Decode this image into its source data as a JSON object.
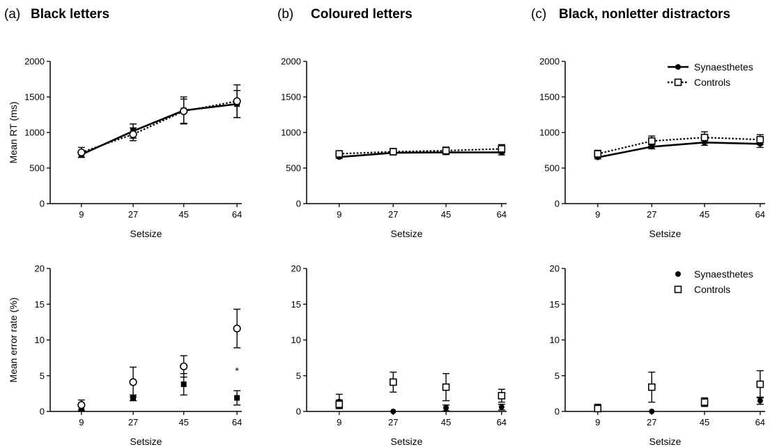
{
  "panels": [
    {
      "letter": "(a)",
      "title": "Black letters"
    },
    {
      "letter": "(b)",
      "title": "Coloured letters"
    },
    {
      "letter": "(c)",
      "title": "Black, nonletter distractors"
    }
  ],
  "legend": {
    "synaesthetes": "Synaesthetes",
    "controls": "Controls"
  },
  "annotation": "*",
  "chart_data": [
    {
      "id": "rt-black",
      "type": "line",
      "xlabel": "Setsize",
      "ylabel": "Mean RT (ms)",
      "categories": [
        "9",
        "27",
        "45",
        "64"
      ],
      "ylim": [
        0,
        2000
      ],
      "yticks": [
        "0",
        "500",
        "1000",
        "1500",
        "2000"
      ],
      "legend": false,
      "series": [
        {
          "name": "Synaesthetes",
          "values": [
            690,
            1020,
            1310,
            1400
          ],
          "err": [
            40,
            100,
            190,
            190
          ],
          "marker": "filled-square"
        },
        {
          "name": "Controls",
          "values": [
            720,
            975,
            1300,
            1440
          ],
          "err": [
            70,
            90,
            170,
            230
          ],
          "marker": "open-circle"
        }
      ]
    },
    {
      "id": "rt-coloured",
      "type": "line",
      "xlabel": "Setsize",
      "ylabel": "",
      "categories": [
        "9",
        "27",
        "45",
        "64"
      ],
      "ylim": [
        0,
        2000
      ],
      "yticks": [
        "0",
        "500",
        "1000",
        "1500",
        "2000"
      ],
      "legend": false,
      "series": [
        {
          "name": "Synaesthetes",
          "values": [
            655,
            715,
            720,
            720
          ],
          "err": [
            20,
            30,
            30,
            35
          ],
          "marker": "filled-circle"
        },
        {
          "name": "Controls",
          "values": [
            700,
            730,
            745,
            770
          ],
          "err": [
            40,
            45,
            50,
            60
          ],
          "marker": "open-square"
        }
      ]
    },
    {
      "id": "rt-nonletter",
      "type": "line",
      "xlabel": "Setsize",
      "ylabel": "",
      "categories": [
        "9",
        "27",
        "45",
        "64"
      ],
      "ylim": [
        0,
        2000
      ],
      "yticks": [
        "0",
        "500",
        "1000",
        "1500",
        "2000"
      ],
      "legend": true,
      "series": [
        {
          "name": "Synaesthetes",
          "values": [
            650,
            800,
            860,
            840
          ],
          "err": [
            20,
            30,
            40,
            50
          ],
          "marker": "filled-circle"
        },
        {
          "name": "Controls",
          "values": [
            700,
            880,
            930,
            900
          ],
          "err": [
            50,
            70,
            80,
            70
          ],
          "marker": "open-square"
        }
      ]
    },
    {
      "id": "err-black",
      "type": "scatter",
      "xlabel": "Setsize",
      "ylabel": "Mean error rate (%)",
      "categories": [
        "9",
        "27",
        "45",
        "64"
      ],
      "ylim": [
        0,
        20
      ],
      "yticks": [
        "0",
        "5",
        "10",
        "15",
        "20"
      ],
      "legend": false,
      "series": [
        {
          "name": "Synaesthetes",
          "values": [
            0.4,
            1.9,
            3.8,
            1.9
          ],
          "err": [
            0.4,
            0.4,
            1.5,
            1.0
          ],
          "marker": "filled-square"
        },
        {
          "name": "Controls",
          "values": [
            0.9,
            4.1,
            6.3,
            11.6
          ],
          "err": [
            0.7,
            2.1,
            1.5,
            2.7
          ],
          "marker": "open-circle"
        }
      ]
    },
    {
      "id": "err-coloured",
      "type": "scatter",
      "xlabel": "Setsize",
      "ylabel": "",
      "categories": [
        "9",
        "27",
        "45",
        "64"
      ],
      "ylim": [
        0,
        20
      ],
      "yticks": [
        "0",
        "5",
        "10",
        "15",
        "20"
      ],
      "legend": false,
      "series": [
        {
          "name": "Synaesthetes",
          "values": [
            1.4,
            0.0,
            0.5,
            0.6
          ],
          "err": [
            1.0,
            0,
            0.4,
            0.4
          ],
          "marker": "filled-circle"
        },
        {
          "name": "Controls",
          "values": [
            1.0,
            4.1,
            3.4,
            2.2
          ],
          "err": [
            0.6,
            1.4,
            1.9,
            0.9
          ],
          "marker": "open-square"
        }
      ]
    },
    {
      "id": "err-nonletter",
      "type": "scatter",
      "xlabel": "Setsize",
      "ylabel": "",
      "categories": [
        "9",
        "27",
        "45",
        "64"
      ],
      "ylim": [
        0,
        20
      ],
      "yticks": [
        "0",
        "5",
        "10",
        "15",
        "20"
      ],
      "legend": true,
      "series": [
        {
          "name": "Synaesthetes",
          "values": [
            0.7,
            0.0,
            1.2,
            1.5
          ],
          "err": [
            0.3,
            0,
            0.5,
            0.5
          ],
          "marker": "filled-circle"
        },
        {
          "name": "Controls",
          "values": [
            0.4,
            3.4,
            1.3,
            3.8
          ],
          "err": [
            0.4,
            2.1,
            0.6,
            1.9
          ],
          "marker": "open-square"
        }
      ]
    }
  ]
}
